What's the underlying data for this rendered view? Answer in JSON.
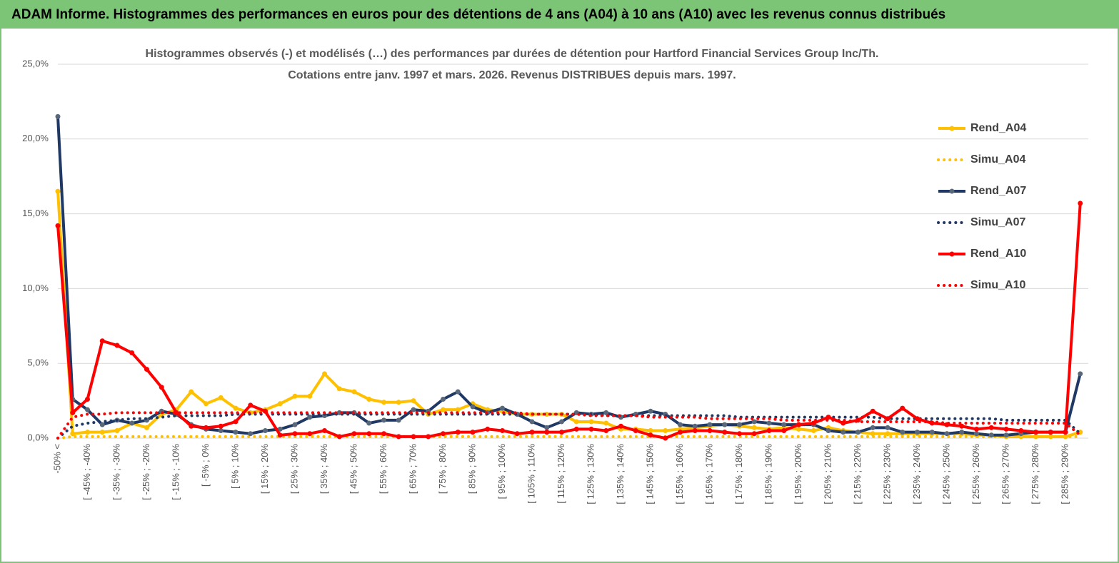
{
  "chart_data": {
    "type": "line",
    "title": "ADAM Informe. Histogrammes des performances en euros pour des détentions de 4 ans (A04) à 10 ans (A10) avec les revenus connus distribués",
    "subtitle": [
      "Histogrammes observés (-) et modélisés (…) des performances par durées de détention pour Hartford Financial Services  Group Inc/Th.",
      "Cotations entre janv. 1997 et mars. 2026. Revenus DISTRIBUES depuis mars. 1997."
    ],
    "categories": [
      "-50% <",
      null,
      "[ -45% ; -40%",
      null,
      "[ -35% ; -30%",
      null,
      "[ -25% ; -20%",
      null,
      "[ -15% ; -10%",
      null,
      "[ -5% ; 0%",
      null,
      "[ 5% ; 10%",
      null,
      "[ 15% ; 20%",
      null,
      "[ 25% ; 30%",
      null,
      "[ 35% ; 40%",
      null,
      "[ 45% ; 50%",
      null,
      "[ 55% ; 60%",
      null,
      "[ 65% ; 70%",
      null,
      "[ 75% ; 80%",
      null,
      "[ 85% ; 90%",
      null,
      "[ 95% ; 100%",
      null,
      "[ 105% ; 110%",
      null,
      "[ 115% ; 120%",
      null,
      "[ 125% ; 130%",
      null,
      "[ 135% ; 140%",
      null,
      "[ 145% ; 150%",
      null,
      "[ 155% ; 160%",
      null,
      "[ 165% ; 170%",
      null,
      "[ 175% ; 180%",
      null,
      "[ 185% ; 190%",
      null,
      "[ 195% ; 200%",
      null,
      "[ 205% ; 210%",
      null,
      "[ 215% ; 220%",
      null,
      "[ 225% ; 230%",
      null,
      "[ 235% ; 240%",
      null,
      "[ 245% ; 250%",
      null,
      "[ 255% ; 260%",
      null,
      "[ 265% ; 270%",
      null,
      "[ 275% ; 280%",
      null,
      "[ 285% ; 290%",
      null
    ],
    "ylim": [
      0,
      25
    ],
    "yticks": [
      {
        "value": 0,
        "label": "0,0%"
      },
      {
        "value": 5,
        "label": "5,0%"
      },
      {
        "value": 10,
        "label": "10,0%"
      },
      {
        "value": 15,
        "label": "15,0%"
      },
      {
        "value": 20,
        "label": "20,0%"
      },
      {
        "value": 25,
        "label": "25,0%"
      }
    ],
    "grid": true,
    "legend": "right",
    "series": [
      {
        "name": "Rend_A04",
        "color": "#ffc000",
        "dashed": false,
        "values": [
          16.5,
          0.3,
          0.4,
          0.4,
          0.5,
          1.0,
          0.7,
          1.6,
          1.9,
          3.1,
          2.3,
          2.7,
          2.0,
          1.7,
          1.9,
          2.3,
          2.8,
          2.8,
          4.3,
          3.3,
          3.1,
          2.6,
          2.4,
          2.4,
          2.5,
          1.6,
          1.9,
          1.9,
          2.3,
          1.9,
          1.8,
          1.6,
          1.6,
          1.6,
          1.6,
          1.1,
          1.1,
          1.0,
          0.6,
          0.6,
          0.5,
          0.5,
          0.6,
          0.7,
          0.8,
          0.9,
          0.8,
          0.7,
          0.6,
          0.7,
          0.6,
          0.5,
          0.7,
          0.5,
          0.4,
          0.3,
          0.3,
          0.3,
          0.3,
          0.3,
          0.3,
          0.3,
          0.2,
          0.2,
          0.1,
          0.1,
          0.1,
          0.1,
          0.1,
          0.4
        ]
      },
      {
        "name": "Simu_A04",
        "color": "#ffc000",
        "dashed": true,
        "values": [
          0,
          0.1,
          0.1,
          0.1,
          0.1,
          0.1,
          0.1,
          0.1,
          0.1,
          0.1,
          0.1,
          0.1,
          0.1,
          0.1,
          0.1,
          0.1,
          0.1,
          0.1,
          0.1,
          0.1,
          0.1,
          0.1,
          0.1,
          0.1,
          0.1,
          0.1,
          0.1,
          0.1,
          0.1,
          0.1,
          0.1,
          0.1,
          0.1,
          0.1,
          0.1,
          0.1,
          0.1,
          0.1,
          0.1,
          0.1,
          0.1,
          0.1,
          0.1,
          0.1,
          0.1,
          0.1,
          0.1,
          0.1,
          0.1,
          0.1,
          0.1,
          0.1,
          0.1,
          0.1,
          0.1,
          0.1,
          0.1,
          0.1,
          0.1,
          0.1,
          0.1,
          0.1,
          0.1,
          0.1,
          0.1,
          0.1,
          0.1,
          0.1,
          0.1,
          0.1
        ]
      },
      {
        "name": "Rend_A07",
        "color": "#1f3864",
        "dashed": false,
        "values": [
          21.5,
          2.6,
          1.9,
          0.9,
          1.2,
          1.0,
          1.2,
          1.8,
          1.6,
          0.9,
          0.6,
          0.5,
          0.4,
          0.3,
          0.5,
          0.6,
          0.9,
          1.4,
          1.5,
          1.7,
          1.7,
          1.0,
          1.2,
          1.2,
          1.9,
          1.8,
          2.6,
          3.1,
          2.1,
          1.7,
          2.0,
          1.6,
          1.1,
          0.7,
          1.1,
          1.7,
          1.6,
          1.7,
          1.4,
          1.6,
          1.8,
          1.6,
          0.9,
          0.8,
          0.9,
          0.9,
          0.9,
          1.1,
          1.0,
          0.9,
          0.9,
          0.9,
          0.5,
          0.4,
          0.4,
          0.7,
          0.7,
          0.4,
          0.4,
          0.4,
          0.3,
          0.4,
          0.3,
          0.2,
          0.2,
          0.3,
          0.4,
          0.4,
          0.4,
          4.3
        ]
      },
      {
        "name": "Simu_A07",
        "color": "#1f3864",
        "dashed": true,
        "values": [
          0,
          0.8,
          1.0,
          1.1,
          1.2,
          1.3,
          1.3,
          1.4,
          1.5,
          1.5,
          1.5,
          1.5,
          1.6,
          1.6,
          1.6,
          1.6,
          1.6,
          1.6,
          1.6,
          1.6,
          1.6,
          1.6,
          1.6,
          1.6,
          1.6,
          1.6,
          1.6,
          1.6,
          1.6,
          1.6,
          1.6,
          1.6,
          1.6,
          1.6,
          1.6,
          1.6,
          1.6,
          1.5,
          1.5,
          1.5,
          1.5,
          1.5,
          1.5,
          1.5,
          1.5,
          1.5,
          1.4,
          1.4,
          1.4,
          1.4,
          1.4,
          1.4,
          1.4,
          1.4,
          1.4,
          1.4,
          1.3,
          1.3,
          1.3,
          1.3,
          1.3,
          1.3,
          1.3,
          1.3,
          1.2,
          1.2,
          1.2,
          1.2,
          1.2,
          0.3
        ]
      },
      {
        "name": "Rend_A10",
        "color": "#ff0000",
        "dashed": false,
        "values": [
          14.2,
          1.7,
          2.6,
          6.5,
          6.2,
          5.7,
          4.6,
          3.4,
          1.7,
          0.8,
          0.7,
          0.8,
          1.1,
          2.2,
          1.8,
          0.2,
          0.3,
          0.3,
          0.5,
          0.1,
          0.3,
          0.3,
          0.3,
          0.1,
          0.1,
          0.1,
          0.3,
          0.4,
          0.4,
          0.6,
          0.5,
          0.3,
          0.4,
          0.4,
          0.4,
          0.6,
          0.6,
          0.5,
          0.8,
          0.5,
          0.2,
          0.0,
          0.4,
          0.5,
          0.5,
          0.4,
          0.3,
          0.3,
          0.5,
          0.5,
          0.9,
          1.0,
          1.4,
          1.0,
          1.2,
          1.8,
          1.3,
          2.0,
          1.3,
          1.0,
          0.9,
          0.8,
          0.6,
          0.7,
          0.6,
          0.5,
          0.4,
          0.4,
          0.4,
          15.7
        ]
      },
      {
        "name": "Simu_A10",
        "color": "#ff0000",
        "dashed": true,
        "values": [
          0,
          1.4,
          1.6,
          1.6,
          1.7,
          1.7,
          1.7,
          1.7,
          1.7,
          1.7,
          1.7,
          1.7,
          1.7,
          1.7,
          1.7,
          1.7,
          1.7,
          1.7,
          1.7,
          1.7,
          1.7,
          1.7,
          1.7,
          1.7,
          1.7,
          1.7,
          1.7,
          1.7,
          1.7,
          1.7,
          1.7,
          1.7,
          1.6,
          1.6,
          1.6,
          1.6,
          1.5,
          1.5,
          1.5,
          1.5,
          1.4,
          1.4,
          1.4,
          1.4,
          1.3,
          1.3,
          1.3,
          1.3,
          1.3,
          1.2,
          1.2,
          1.2,
          1.2,
          1.2,
          1.1,
          1.1,
          1.1,
          1.1,
          1.1,
          1.1,
          1.0,
          1.0,
          1.0,
          1.0,
          1.0,
          1.0,
          1.0,
          1.0,
          1.0,
          0.2
        ]
      }
    ]
  }
}
